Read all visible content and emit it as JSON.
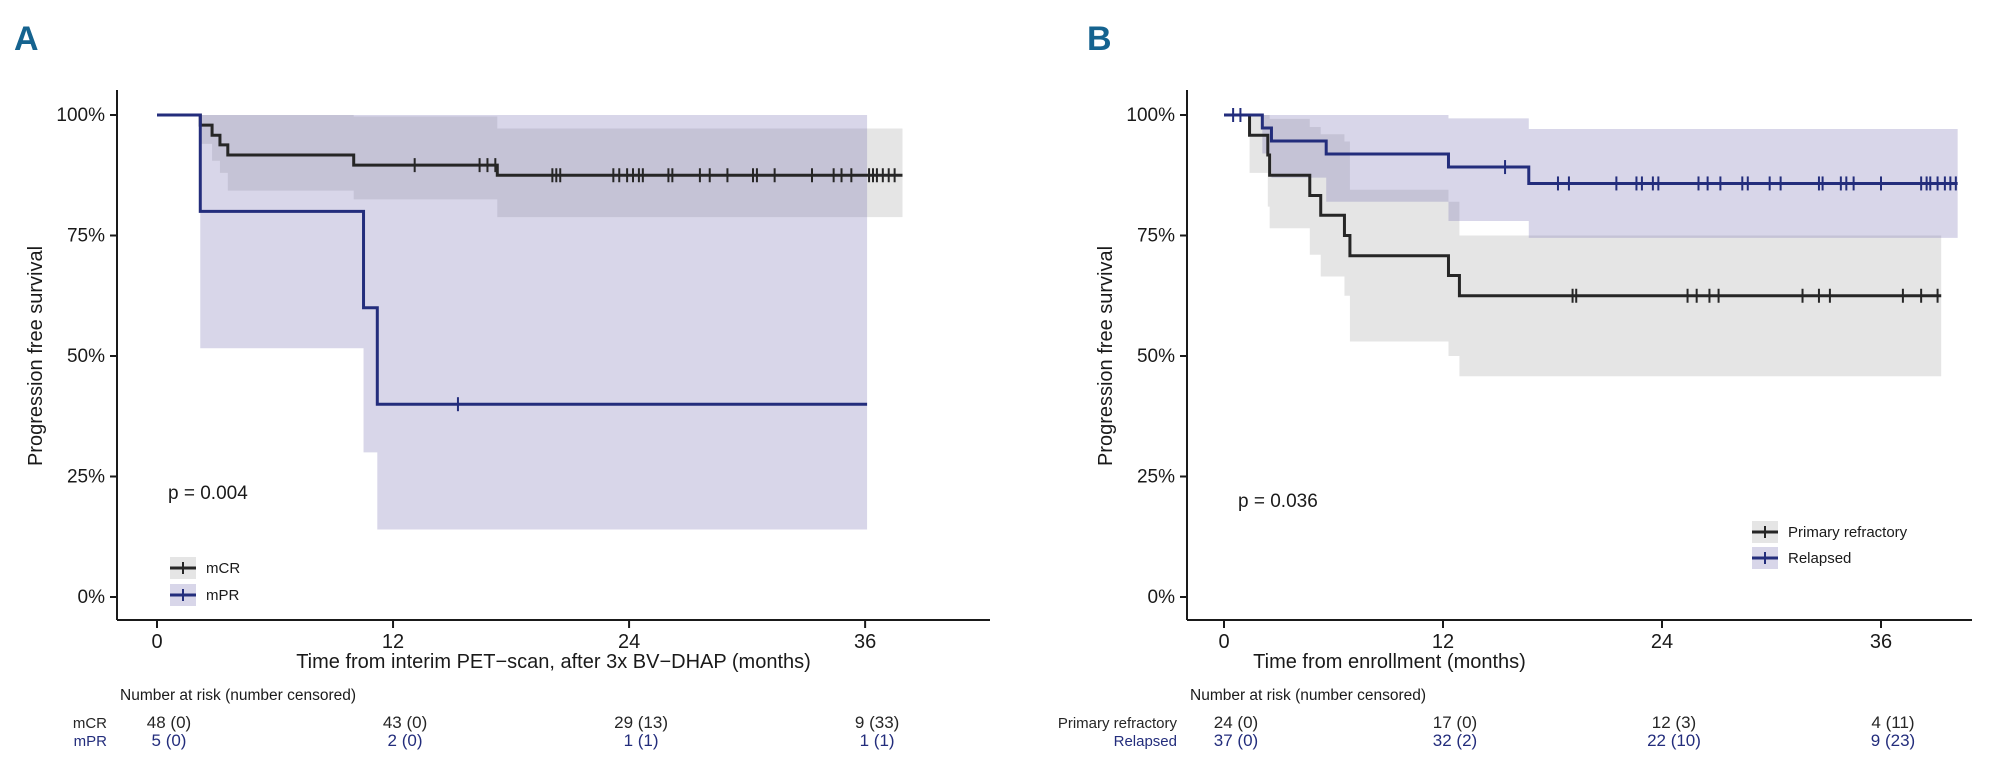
{
  "figure": {
    "background": "#ffffff",
    "panel_label_color": "#15638f",
    "text_color": "#1a1a1a",
    "navy": "#232d7c",
    "black_curve": "#262626"
  },
  "chart_data": [
    {
      "type": "line",
      "subtype": "kaplan-meier-step",
      "panel_label": "A",
      "p_value": "p = 0.004",
      "xlabel": "Time from interim PET−scan, after 3x BV−DHAP (months)",
      "ylabel": "Progression free survival",
      "xlim": [
        0,
        40
      ],
      "ylim": [
        0,
        100
      ],
      "x_ticks": [
        "0",
        "12",
        "24",
        "36"
      ],
      "x_tick_values": [
        0,
        12,
        24,
        36
      ],
      "y_ticks": [
        "0%",
        "25%",
        "50%",
        "75%",
        "100%"
      ],
      "y_tick_values": [
        0,
        25,
        50,
        75,
        100
      ],
      "grid": "off",
      "legend_position": "inside-bottom-left",
      "series": [
        {
          "name": "mCR",
          "color": "#262626",
          "band_color": "rgba(0,0,0,0.10)",
          "steps": [
            [
              0,
              100
            ],
            [
              2.2,
              100
            ],
            [
              2.2,
              97.9
            ],
            [
              2.8,
              97.9
            ],
            [
              2.8,
              95.8
            ],
            [
              3.2,
              95.8
            ],
            [
              3.2,
              93.8
            ],
            [
              3.6,
              93.8
            ],
            [
              3.6,
              91.7
            ],
            [
              10,
              91.7
            ],
            [
              10,
              89.6
            ],
            [
              17.3,
              89.6
            ],
            [
              17.3,
              87.5
            ],
            [
              37.9,
              87.5
            ]
          ],
          "censors": [
            [
              13.1,
              89.6
            ],
            [
              16.4,
              89.6
            ],
            [
              16.8,
              89.6
            ],
            [
              17.2,
              89.6
            ],
            [
              20.1,
              87.5
            ],
            [
              20.3,
              87.5
            ],
            [
              20.5,
              87.5
            ],
            [
              23.2,
              87.5
            ],
            [
              23.5,
              87.5
            ],
            [
              23.9,
              87.5
            ],
            [
              24.2,
              87.5
            ],
            [
              24.5,
              87.5
            ],
            [
              24.7,
              87.5
            ],
            [
              26.0,
              87.5
            ],
            [
              26.2,
              87.5
            ],
            [
              27.6,
              87.5
            ],
            [
              28.1,
              87.5
            ],
            [
              29.0,
              87.5
            ],
            [
              30.3,
              87.5
            ],
            [
              30.5,
              87.5
            ],
            [
              31.4,
              87.5
            ],
            [
              33.3,
              87.5
            ],
            [
              34.4,
              87.5
            ],
            [
              34.8,
              87.5
            ],
            [
              35.3,
              87.5
            ],
            [
              36.2,
              87.5
            ],
            [
              36.4,
              87.5
            ],
            [
              36.6,
              87.5
            ],
            [
              36.9,
              87.5
            ],
            [
              37.2,
              87.5
            ],
            [
              37.5,
              87.5
            ]
          ],
          "ci_band": [
            [
              2.2,
              2.8,
              94,
              100
            ],
            [
              2.8,
              3.2,
              90.5,
              100
            ],
            [
              3.2,
              3.6,
              88,
              100
            ],
            [
              3.6,
              10,
              84.3,
              100
            ],
            [
              10,
              17.3,
              82.5,
              99.7
            ],
            [
              17.3,
              37.9,
              78.8,
              97.2
            ]
          ]
        },
        {
          "name": "mPR",
          "color": "#232d7c",
          "band_color": "rgba(115,107,175,0.28)",
          "steps": [
            [
              0,
              100
            ],
            [
              2.2,
              100
            ],
            [
              2.2,
              80
            ],
            [
              10.5,
              80
            ],
            [
              10.5,
              60
            ],
            [
              11.2,
              60
            ],
            [
              11.2,
              40
            ],
            [
              36.1,
              40
            ]
          ],
          "censors": [
            [
              15.3,
              40
            ]
          ],
          "ci_band": [
            [
              2.2,
              10.5,
              51.6,
              100
            ],
            [
              10.5,
              11.2,
              30,
              100
            ],
            [
              11.2,
              36.1,
              14,
              100
            ]
          ]
        }
      ],
      "risk_table": {
        "header": "Number at risk (number censored)",
        "rows": [
          {
            "label": "mCR",
            "color": "#262626",
            "values": [
              "48 (0)",
              "43 (0)",
              "29 (13)",
              "9 (33)"
            ]
          },
          {
            "label": "mPR",
            "color": "#232d7c",
            "values": [
              "5 (0)",
              "2 (0)",
              "1 (1)",
              "1 (1)"
            ]
          }
        ]
      }
    },
    {
      "type": "line",
      "subtype": "kaplan-meier-step",
      "panel_label": "B",
      "p_value": "p = 0.036",
      "xlabel": "Time from enrollment (months)",
      "ylabel": "Progression free survival",
      "xlim": [
        0,
        40
      ],
      "ylim": [
        0,
        100
      ],
      "x_ticks": [
        "0",
        "12",
        "24",
        "36"
      ],
      "x_tick_values": [
        0,
        12,
        24,
        36
      ],
      "y_ticks": [
        "0%",
        "25%",
        "50%",
        "75%",
        "100%"
      ],
      "y_tick_values": [
        0,
        25,
        50,
        75,
        100
      ],
      "grid": "off",
      "legend_position": "inside-right",
      "series": [
        {
          "name": "Primary refractory",
          "color": "#262626",
          "band_color": "rgba(0,0,0,0.10)",
          "steps": [
            [
              0,
              100
            ],
            [
              1.4,
              100
            ],
            [
              1.4,
              95.8
            ],
            [
              2.4,
              95.8
            ],
            [
              2.4,
              91.7
            ],
            [
              2.5,
              91.7
            ],
            [
              2.5,
              87.5
            ],
            [
              4.7,
              87.5
            ],
            [
              4.7,
              83.3
            ],
            [
              5.3,
              83.3
            ],
            [
              5.3,
              79.2
            ],
            [
              6.6,
              79.2
            ],
            [
              6.6,
              75
            ],
            [
              6.9,
              75
            ],
            [
              6.9,
              70.8
            ],
            [
              12.3,
              70.8
            ],
            [
              12.3,
              66.7
            ],
            [
              12.9,
              66.7
            ],
            [
              12.9,
              62.5
            ],
            [
              39.3,
              62.5
            ]
          ],
          "censors": [
            [
              19.1,
              62.5
            ],
            [
              19.3,
              62.5
            ],
            [
              25.4,
              62.5
            ],
            [
              25.9,
              62.5
            ],
            [
              26.6,
              62.5
            ],
            [
              27.1,
              62.5
            ],
            [
              31.7,
              62.5
            ],
            [
              32.6,
              62.5
            ],
            [
              33.2,
              62.5
            ],
            [
              37.2,
              62.5
            ],
            [
              38.2,
              62.5
            ],
            [
              39.1,
              62.5
            ]
          ],
          "ci_band": [
            [
              1.4,
              2.4,
              88,
              100
            ],
            [
              2.4,
              2.5,
              81,
              100
            ],
            [
              2.5,
              4.7,
              76.5,
              99.2
            ],
            [
              4.7,
              5.3,
              71,
              97.5
            ],
            [
              5.3,
              6.6,
              66.5,
              96
            ],
            [
              6.6,
              6.9,
              62.5,
              94.5
            ],
            [
              6.9,
              12.3,
              53,
              84.5
            ],
            [
              12.3,
              12.9,
              50,
              82
            ],
            [
              12.9,
              39.3,
              45.8,
              75
            ]
          ]
        },
        {
          "name": "Relapsed",
          "color": "#232d7c",
          "band_color": "rgba(115,107,175,0.28)",
          "steps": [
            [
              0,
              100
            ],
            [
              2.1,
              100
            ],
            [
              2.1,
              97.3
            ],
            [
              2.6,
              97.3
            ],
            [
              2.6,
              94.6
            ],
            [
              5.6,
              94.6
            ],
            [
              5.6,
              91.9
            ],
            [
              12.3,
              91.9
            ],
            [
              12.3,
              89.2
            ],
            [
              16.7,
              89.2
            ],
            [
              16.7,
              85.8
            ],
            [
              40.2,
              85.8
            ]
          ],
          "censors": [
            [
              0.5,
              100
            ],
            [
              0.9,
              100
            ],
            [
              15.4,
              89.2
            ],
            [
              18.3,
              85.8
            ],
            [
              18.9,
              85.8
            ],
            [
              21.5,
              85.8
            ],
            [
              22.6,
              85.8
            ],
            [
              22.9,
              85.8
            ],
            [
              23.5,
              85.8
            ],
            [
              23.8,
              85.8
            ],
            [
              26.0,
              85.8
            ],
            [
              26.5,
              85.8
            ],
            [
              27.2,
              85.8
            ],
            [
              28.4,
              85.8
            ],
            [
              28.7,
              85.8
            ],
            [
              29.9,
              85.8
            ],
            [
              30.5,
              85.8
            ],
            [
              32.6,
              85.8
            ],
            [
              32.8,
              85.8
            ],
            [
              33.8,
              85.8
            ],
            [
              34.1,
              85.8
            ],
            [
              34.5,
              85.8
            ],
            [
              36.0,
              85.8
            ],
            [
              38.2,
              85.8
            ],
            [
              38.5,
              85.8
            ],
            [
              38.7,
              85.8
            ],
            [
              39.1,
              85.8
            ],
            [
              39.5,
              85.8
            ],
            [
              39.8,
              85.8
            ],
            [
              40.1,
              85.8
            ]
          ],
          "ci_band": [
            [
              2.1,
              2.6,
              92,
              100
            ],
            [
              2.6,
              5.6,
              87,
              100
            ],
            [
              5.6,
              12.3,
              82,
              100
            ],
            [
              12.3,
              16.7,
              78,
              99.3
            ],
            [
              16.7,
              40.2,
              74.5,
              97.1
            ]
          ]
        }
      ],
      "risk_table": {
        "header": "Number at risk (number censored)",
        "rows": [
          {
            "label": "Primary refractory",
            "color": "#262626",
            "values": [
              "24 (0)",
              "17 (0)",
              "12 (3)",
              "4 (11)"
            ]
          },
          {
            "label": "Relapsed",
            "color": "#232d7c",
            "values": [
              "37 (0)",
              "32 (2)",
              "22 (10)",
              "9 (23)"
            ]
          }
        ]
      }
    }
  ]
}
